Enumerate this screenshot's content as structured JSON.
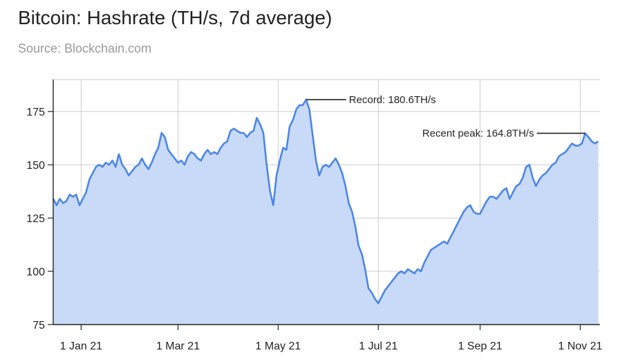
{
  "chart_data": {
    "type": "area",
    "title": "Bitcoin: Hashrate (TH/s, 7d average)",
    "subtitle": "Source: Blockchain.com",
    "xlabel": "",
    "ylabel": "",
    "ylim": [
      75,
      190
    ],
    "xlim": [
      "2020-12-15",
      "2021-11-13"
    ],
    "yticks": [
      75,
      100,
      125,
      150,
      175
    ],
    "xticks": [
      {
        "date": "2021-01-01",
        "label": "1 Jan 21"
      },
      {
        "date": "2021-03-01",
        "label": "1 Mar 21"
      },
      {
        "date": "2021-05-01",
        "label": "1 May 21"
      },
      {
        "date": "2021-07-01",
        "label": "1 Jul 21"
      },
      {
        "date": "2021-09-01",
        "label": "1 Sep 21"
      },
      {
        "date": "2021-11-01",
        "label": "1 Nov 21"
      }
    ],
    "grid": true,
    "colors": {
      "line": "#4a86e8",
      "fill": "#c9daf8",
      "grid": "#cccccc",
      "axis": "#222222"
    },
    "series": [
      {
        "points": [
          [
            "2020-12-15",
            134
          ],
          [
            "2020-12-17",
            131
          ],
          [
            "2020-12-19",
            134
          ],
          [
            "2020-12-21",
            132
          ],
          [
            "2020-12-23",
            133
          ],
          [
            "2020-12-25",
            136
          ],
          [
            "2020-12-27",
            135
          ],
          [
            "2020-12-29",
            136
          ],
          [
            "2020-12-31",
            131
          ],
          [
            "2021-01-02",
            134
          ],
          [
            "2021-01-04",
            137
          ],
          [
            "2021-01-06",
            143
          ],
          [
            "2021-01-08",
            146
          ],
          [
            "2021-01-10",
            149
          ],
          [
            "2021-01-12",
            150
          ],
          [
            "2021-01-14",
            149
          ],
          [
            "2021-01-16",
            151
          ],
          [
            "2021-01-18",
            150
          ],
          [
            "2021-01-20",
            152
          ],
          [
            "2021-01-22",
            149
          ],
          [
            "2021-01-24",
            155
          ],
          [
            "2021-01-26",
            150
          ],
          [
            "2021-01-28",
            148
          ],
          [
            "2021-01-30",
            145
          ],
          [
            "2021-02-01",
            147
          ],
          [
            "2021-02-03",
            149
          ],
          [
            "2021-02-05",
            150
          ],
          [
            "2021-02-07",
            153
          ],
          [
            "2021-02-09",
            150
          ],
          [
            "2021-02-11",
            148
          ],
          [
            "2021-02-13",
            151
          ],
          [
            "2021-02-15",
            155
          ],
          [
            "2021-02-17",
            158
          ],
          [
            "2021-02-19",
            165
          ],
          [
            "2021-02-21",
            163
          ],
          [
            "2021-02-23",
            157
          ],
          [
            "2021-02-25",
            155
          ],
          [
            "2021-02-27",
            153
          ],
          [
            "2021-03-01",
            151
          ],
          [
            "2021-03-03",
            152
          ],
          [
            "2021-03-05",
            150
          ],
          [
            "2021-03-07",
            154
          ],
          [
            "2021-03-09",
            156
          ],
          [
            "2021-03-11",
            155
          ],
          [
            "2021-03-13",
            153
          ],
          [
            "2021-03-15",
            152
          ],
          [
            "2021-03-17",
            155
          ],
          [
            "2021-03-19",
            157
          ],
          [
            "2021-03-21",
            155
          ],
          [
            "2021-03-23",
            156
          ],
          [
            "2021-03-25",
            155
          ],
          [
            "2021-03-27",
            158
          ],
          [
            "2021-03-29",
            160
          ],
          [
            "2021-03-31",
            161
          ],
          [
            "2021-04-02",
            166
          ],
          [
            "2021-04-04",
            167
          ],
          [
            "2021-04-06",
            166
          ],
          [
            "2021-04-08",
            165
          ],
          [
            "2021-04-10",
            165
          ],
          [
            "2021-04-12",
            163
          ],
          [
            "2021-04-14",
            165
          ],
          [
            "2021-04-16",
            166
          ],
          [
            "2021-04-18",
            172
          ],
          [
            "2021-04-20",
            169
          ],
          [
            "2021-04-22",
            165
          ],
          [
            "2021-04-24",
            150
          ],
          [
            "2021-04-26",
            138
          ],
          [
            "2021-04-28",
            131
          ],
          [
            "2021-04-30",
            145
          ],
          [
            "2021-05-02",
            152
          ],
          [
            "2021-05-04",
            158
          ],
          [
            "2021-05-06",
            157
          ],
          [
            "2021-05-08",
            168
          ],
          [
            "2021-05-10",
            171
          ],
          [
            "2021-05-12",
            176
          ],
          [
            "2021-05-14",
            178
          ],
          [
            "2021-05-16",
            178
          ],
          [
            "2021-05-18",
            180.6
          ],
          [
            "2021-05-20",
            176
          ],
          [
            "2021-05-22",
            164
          ],
          [
            "2021-05-24",
            152
          ],
          [
            "2021-05-26",
            145
          ],
          [
            "2021-05-28",
            149
          ],
          [
            "2021-05-30",
            150
          ],
          [
            "2021-06-01",
            149
          ],
          [
            "2021-06-03",
            151
          ],
          [
            "2021-06-05",
            153
          ],
          [
            "2021-06-07",
            150
          ],
          [
            "2021-06-09",
            146
          ],
          [
            "2021-06-11",
            140
          ],
          [
            "2021-06-13",
            132
          ],
          [
            "2021-06-15",
            128
          ],
          [
            "2021-06-17",
            121
          ],
          [
            "2021-06-19",
            112
          ],
          [
            "2021-06-21",
            108
          ],
          [
            "2021-06-23",
            101
          ],
          [
            "2021-06-25",
            92
          ],
          [
            "2021-06-27",
            90
          ],
          [
            "2021-06-29",
            87
          ],
          [
            "2021-07-01",
            85
          ],
          [
            "2021-07-03",
            88
          ],
          [
            "2021-07-05",
            91
          ],
          [
            "2021-07-07",
            93
          ],
          [
            "2021-07-09",
            95
          ],
          [
            "2021-07-11",
            97
          ],
          [
            "2021-07-13",
            99
          ],
          [
            "2021-07-15",
            100
          ],
          [
            "2021-07-17",
            99
          ],
          [
            "2021-07-19",
            101
          ],
          [
            "2021-07-21",
            100
          ],
          [
            "2021-07-23",
            99
          ],
          [
            "2021-07-25",
            101
          ],
          [
            "2021-07-27",
            100
          ],
          [
            "2021-07-29",
            104
          ],
          [
            "2021-07-31",
            107
          ],
          [
            "2021-08-02",
            110
          ],
          [
            "2021-08-04",
            111
          ],
          [
            "2021-08-06",
            112
          ],
          [
            "2021-08-08",
            113
          ],
          [
            "2021-08-10",
            114
          ],
          [
            "2021-08-12",
            113
          ],
          [
            "2021-08-14",
            116
          ],
          [
            "2021-08-16",
            119
          ],
          [
            "2021-08-18",
            122
          ],
          [
            "2021-08-20",
            125
          ],
          [
            "2021-08-22",
            128
          ],
          [
            "2021-08-24",
            130
          ],
          [
            "2021-08-26",
            131
          ],
          [
            "2021-08-28",
            128
          ],
          [
            "2021-08-30",
            127
          ],
          [
            "2021-09-01",
            127
          ],
          [
            "2021-09-03",
            130
          ],
          [
            "2021-09-05",
            133
          ],
          [
            "2021-09-07",
            135
          ],
          [
            "2021-09-09",
            135
          ],
          [
            "2021-09-11",
            134
          ],
          [
            "2021-09-13",
            136
          ],
          [
            "2021-09-15",
            138
          ],
          [
            "2021-09-17",
            139
          ],
          [
            "2021-09-19",
            134
          ],
          [
            "2021-09-21",
            137
          ],
          [
            "2021-09-23",
            140
          ],
          [
            "2021-09-25",
            141
          ],
          [
            "2021-09-27",
            144
          ],
          [
            "2021-09-29",
            149
          ],
          [
            "2021-10-01",
            150
          ],
          [
            "2021-10-03",
            144
          ],
          [
            "2021-10-05",
            140
          ],
          [
            "2021-10-07",
            143
          ],
          [
            "2021-10-09",
            145
          ],
          [
            "2021-10-11",
            146
          ],
          [
            "2021-10-13",
            148
          ],
          [
            "2021-10-15",
            150
          ],
          [
            "2021-10-17",
            151
          ],
          [
            "2021-10-19",
            154
          ],
          [
            "2021-10-21",
            155
          ],
          [
            "2021-10-23",
            156
          ],
          [
            "2021-10-25",
            158
          ],
          [
            "2021-10-27",
            160
          ],
          [
            "2021-10-29",
            159
          ],
          [
            "2021-10-31",
            159
          ],
          [
            "2021-11-02",
            160
          ],
          [
            "2021-11-04",
            164.8
          ],
          [
            "2021-11-06",
            163
          ],
          [
            "2021-11-08",
            161
          ],
          [
            "2021-11-10",
            160
          ],
          [
            "2021-11-12",
            161
          ]
        ]
      }
    ],
    "annotations": [
      {
        "date": "2021-05-18",
        "value": 180.6,
        "text": "Record: 180.6TH/s",
        "side": "right"
      },
      {
        "date": "2021-11-04",
        "value": 164.8,
        "text": "Recent peak: 164.8TH/s",
        "side": "left"
      }
    ]
  }
}
